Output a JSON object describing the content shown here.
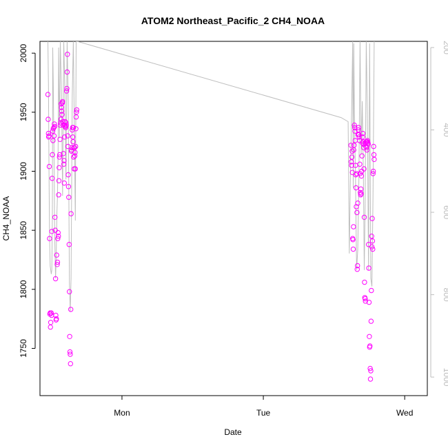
{
  "chart_data": {
    "type": "scatter",
    "title": "ATOM2 Northeast_Pacific_2 CH4_NOAA",
    "xlabel": "Date",
    "ylabel": "CH4_NOAA",
    "x_ticks": [
      "Mon",
      "Tue",
      "Wed"
    ],
    "xlim": [
      -0.29,
      1.08
    ],
    "ylim": [
      1710,
      2010
    ],
    "y_ticks": [
      1750,
      1800,
      1850,
      1900,
      1950,
      2000
    ],
    "y2_ticks": [
      200,
      400,
      600,
      800,
      1000
    ],
    "y2lim": [
      1045,
      185
    ],
    "y2_reversed": true,
    "grid": false,
    "colors": {
      "points": "#ff00ff",
      "line": "#bebebe",
      "axis": "#000000",
      "axis_right": "#bdbdbd"
    },
    "series": [
      {
        "type": "points",
        "points": [
          [
            -0.262,
            1965
          ],
          [
            -0.261,
            1944
          ],
          [
            -0.26,
            1932
          ],
          [
            -0.259,
            1929
          ],
          [
            -0.258,
            1930
          ],
          [
            -0.257,
            1904
          ],
          [
            -0.256,
            1843
          ],
          [
            -0.255,
            1779
          ],
          [
            -0.254,
            1780
          ],
          [
            -0.253,
            1768
          ],
          [
            -0.252,
            1772
          ],
          [
            -0.25,
            1780
          ],
          [
            -0.249,
            1778
          ],
          [
            -0.248,
            1849
          ],
          [
            -0.247,
            1894
          ],
          [
            -0.246,
            1914
          ],
          [
            -0.245,
            1934
          ],
          [
            -0.244,
            1926
          ],
          [
            -0.243,
            1936
          ],
          [
            -0.241,
            1937
          ],
          [
            -0.24,
            1930
          ],
          [
            -0.239,
            1940
          ],
          [
            -0.238,
            1938
          ],
          [
            -0.237,
            1861
          ],
          [
            -0.236,
            1850
          ],
          [
            -0.235,
            1809
          ],
          [
            -0.234,
            1778
          ],
          [
            -0.233,
            1774
          ],
          [
            -0.232,
            1775
          ],
          [
            -0.231,
            1829
          ],
          [
            -0.229,
            1821
          ],
          [
            -0.228,
            1823
          ],
          [
            -0.227,
            1843
          ],
          [
            -0.226,
            1848
          ],
          [
            -0.225,
            1845
          ],
          [
            -0.224,
            1880
          ],
          [
            -0.223,
            1892
          ],
          [
            -0.222,
            1903
          ],
          [
            -0.221,
            1912
          ],
          [
            -0.22,
            1914
          ],
          [
            -0.219,
            1927
          ],
          [
            -0.218,
            1939
          ],
          [
            -0.217,
            1941
          ],
          [
            -0.216,
            1944
          ],
          [
            -0.215,
            1957
          ],
          [
            -0.214,
            1954
          ],
          [
            -0.213,
            1951
          ],
          [
            -0.212,
            1948
          ],
          [
            -0.211,
            1958
          ],
          [
            -0.21,
            1959
          ],
          [
            -0.209,
            1942
          ],
          [
            -0.208,
            1939
          ],
          [
            -0.207,
            1915
          ],
          [
            -0.206,
            1906
          ],
          [
            -0.205,
            1909
          ],
          [
            -0.204,
            1890
          ],
          [
            -0.203,
            1929
          ],
          [
            -0.202,
            1939
          ],
          [
            -0.201,
            1942
          ],
          [
            -0.2,
            1938
          ],
          [
            -0.199,
            1937
          ],
          [
            -0.198,
            1941
          ],
          [
            -0.197,
            1939
          ],
          [
            -0.196,
            1968
          ],
          [
            -0.195,
            1970
          ],
          [
            -0.194,
            1984
          ],
          [
            -0.193,
            1999
          ],
          [
            -0.192,
            1930
          ],
          [
            -0.191,
            1921
          ],
          [
            -0.19,
            1897
          ],
          [
            -0.189,
            1887
          ],
          [
            -0.188,
            1878
          ],
          [
            -0.187,
            1838
          ],
          [
            -0.186,
            1798
          ],
          [
            -0.185,
            1760
          ],
          [
            -0.184,
            1747
          ],
          [
            -0.183,
            1745
          ],
          [
            -0.182,
            1737
          ],
          [
            -0.181,
            1783
          ],
          [
            -0.18,
            1864
          ],
          [
            -0.179,
            1917
          ],
          [
            -0.178,
            1918
          ],
          [
            -0.177,
            1920
          ],
          [
            -0.176,
            1935
          ],
          [
            -0.175,
            1937
          ],
          [
            -0.174,
            1929
          ],
          [
            -0.173,
            1925
          ],
          [
            -0.172,
            1937
          ],
          [
            -0.171,
            1912
          ],
          [
            -0.17,
            1920
          ],
          [
            -0.169,
            1902
          ],
          [
            -0.168,
            1920
          ],
          [
            -0.167,
            1913
          ],
          [
            -0.166,
            1916
          ],
          [
            -0.165,
            1902
          ],
          [
            -0.164,
            1921
          ],
          [
            -0.163,
            1936
          ],
          [
            -0.162,
            1946
          ],
          [
            -0.161,
            1950
          ],
          [
            -0.16,
            1952
          ],
          [
            0.81,
            1922
          ],
          [
            0.811,
            1908
          ],
          [
            0.812,
            1905
          ],
          [
            0.813,
            1912
          ],
          [
            0.814,
            1917
          ],
          [
            0.815,
            1899
          ],
          [
            0.816,
            1843
          ],
          [
            0.817,
            1842
          ],
          [
            0.818,
            1834
          ],
          [
            0.819,
            1853
          ],
          [
            0.82,
            1918
          ],
          [
            0.821,
            1922
          ],
          [
            0.822,
            1939
          ],
          [
            0.823,
            1937
          ],
          [
            0.824,
            1934
          ],
          [
            0.825,
            1926
          ],
          [
            0.826,
            1905
          ],
          [
            0.827,
            1897
          ],
          [
            0.828,
            1886
          ],
          [
            0.829,
            1870
          ],
          [
            0.83,
            1898
          ],
          [
            0.831,
            1865
          ],
          [
            0.832,
            1817
          ],
          [
            0.833,
            1820
          ],
          [
            0.834,
            1873
          ],
          [
            0.835,
            1931
          ],
          [
            0.836,
            1935
          ],
          [
            0.837,
            1937
          ],
          [
            0.838,
            1931
          ],
          [
            0.839,
            1929
          ],
          [
            0.84,
            1926
          ],
          [
            0.841,
            1906
          ],
          [
            0.842,
            1898
          ],
          [
            0.843,
            1882
          ],
          [
            0.844,
            1880
          ],
          [
            0.845,
            1885
          ],
          [
            0.846,
            1881
          ],
          [
            0.847,
            1896
          ],
          [
            0.848,
            1900
          ],
          [
            0.849,
            1913
          ],
          [
            0.85,
            1924
          ],
          [
            0.851,
            1929
          ],
          [
            0.852,
            1932
          ],
          [
            0.853,
            1925
          ],
          [
            0.854,
            1923
          ],
          [
            0.855,
            1920
          ],
          [
            0.856,
            1902
          ],
          [
            0.857,
            1861
          ],
          [
            0.858,
            1806
          ],
          [
            0.859,
            1793
          ],
          [
            0.86,
            1792
          ],
          [
            0.861,
            1790
          ],
          [
            0.862,
            1924
          ],
          [
            0.863,
            1921
          ],
          [
            0.864,
            1925
          ],
          [
            0.865,
            1920
          ],
          [
            0.866,
            1918
          ],
          [
            0.867,
            1925
          ],
          [
            0.868,
            1926
          ],
          [
            0.869,
            1924
          ],
          [
            0.87,
            1924
          ],
          [
            0.871,
            1923
          ],
          [
            0.872,
            1838
          ],
          [
            0.873,
            1818
          ],
          [
            0.874,
            1789
          ],
          [
            0.875,
            1760
          ],
          [
            0.876,
            1751
          ],
          [
            0.877,
            1752
          ],
          [
            0.878,
            1733
          ],
          [
            0.879,
            1724
          ],
          [
            0.88,
            1731
          ],
          [
            0.881,
            1773
          ],
          [
            0.882,
            1799
          ],
          [
            0.883,
            1845
          ],
          [
            0.884,
            1836
          ],
          [
            0.885,
            1860
          ],
          [
            0.886,
            1841
          ],
          [
            0.887,
            1834
          ],
          [
            0.888,
            1898
          ],
          [
            0.889,
            1900
          ],
          [
            0.89,
            1921
          ],
          [
            0.891,
            1914
          ],
          [
            0.892,
            1910
          ]
        ]
      },
      {
        "type": "line",
        "axis": "right",
        "points": [
          [
            -0.262,
            185
          ],
          [
            -0.26,
            290
          ],
          [
            -0.258,
            500
          ],
          [
            -0.256,
            660
          ],
          [
            -0.254,
            730
          ],
          [
            -0.25,
            750
          ],
          [
            -0.248,
            740
          ],
          [
            -0.246,
            600
          ],
          [
            -0.245,
            200
          ],
          [
            -0.243,
            290
          ],
          [
            -0.24,
            480
          ],
          [
            -0.238,
            650
          ],
          [
            -0.235,
            760
          ],
          [
            -0.233,
            720
          ],
          [
            -0.23,
            600
          ],
          [
            -0.228,
            560
          ],
          [
            -0.226,
            450
          ],
          [
            -0.224,
            200
          ],
          [
            -0.221,
            420
          ],
          [
            -0.218,
            185
          ],
          [
            -0.214,
            310
          ],
          [
            -0.21,
            560
          ],
          [
            -0.206,
            185
          ],
          [
            -0.202,
            300
          ],
          [
            -0.198,
            520
          ],
          [
            -0.194,
            185
          ],
          [
            -0.19,
            330
          ],
          [
            -0.186,
            770
          ],
          [
            -0.183,
            840
          ],
          [
            -0.18,
            760
          ],
          [
            -0.176,
            320
          ],
          [
            -0.172,
            185
          ],
          [
            -0.168,
            420
          ],
          [
            -0.165,
            620
          ],
          [
            -0.162,
            185
          ],
          [
            -0.158,
            185
          ],
          [
            0.775,
            370
          ],
          [
            0.8,
            380
          ],
          [
            0.804,
            700
          ],
          [
            0.808,
            510
          ],
          [
            0.812,
            360
          ],
          [
            0.816,
            185
          ],
          [
            0.818,
            540
          ],
          [
            0.82,
            190
          ],
          [
            0.822,
            360
          ],
          [
            0.826,
            520
          ],
          [
            0.83,
            740
          ],
          [
            0.834,
            690
          ],
          [
            0.838,
            520
          ],
          [
            0.842,
            185
          ],
          [
            0.846,
            460
          ],
          [
            0.85,
            330
          ],
          [
            0.854,
            520
          ],
          [
            0.857,
            740
          ],
          [
            0.86,
            580
          ],
          [
            0.864,
            185
          ],
          [
            0.868,
            360
          ],
          [
            0.872,
            740
          ],
          [
            0.876,
            190
          ],
          [
            0.88,
            760
          ],
          [
            0.884,
            780
          ],
          [
            0.888,
            560
          ],
          [
            0.892,
            185
          ]
        ]
      }
    ]
  }
}
